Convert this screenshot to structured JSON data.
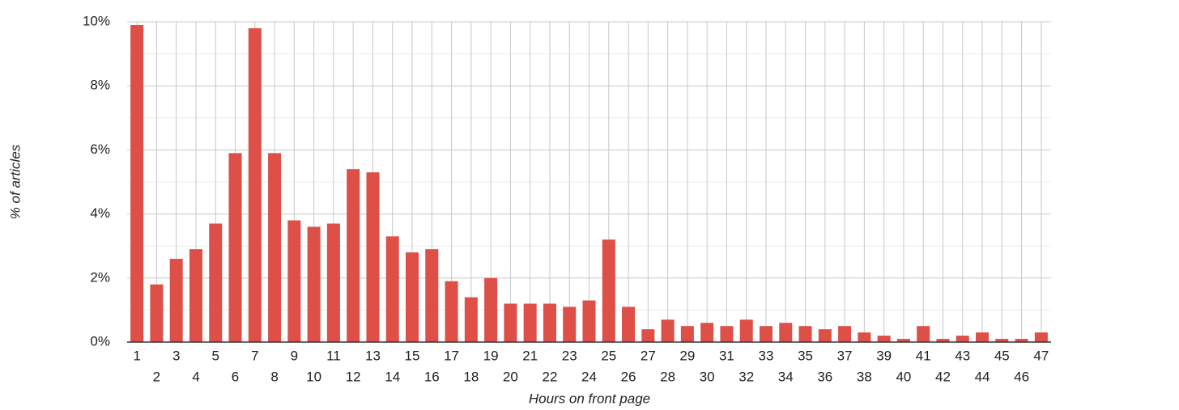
{
  "chart_data": {
    "type": "bar",
    "x_label": "Hours on front page",
    "y_label": "% of articles",
    "categories": [
      "1",
      "2",
      "3",
      "4",
      "5",
      "6",
      "7",
      "8",
      "9",
      "10",
      "11",
      "12",
      "13",
      "14",
      "15",
      "16",
      "17",
      "18",
      "19",
      "20",
      "21",
      "22",
      "23",
      "24",
      "25",
      "26",
      "27",
      "28",
      "29",
      "30",
      "31",
      "32",
      "33",
      "34",
      "35",
      "36",
      "37",
      "38",
      "39",
      "40",
      "41",
      "42",
      "43",
      "44",
      "45",
      "46",
      "47"
    ],
    "values": [
      9.9,
      1.8,
      2.6,
      2.9,
      3.7,
      5.9,
      9.8,
      5.9,
      3.8,
      3.6,
      3.7,
      5.4,
      5.3,
      3.3,
      2.8,
      2.9,
      1.9,
      1.4,
      2.0,
      1.2,
      1.2,
      1.2,
      1.1,
      1.3,
      3.2,
      1.1,
      0.4,
      0.7,
      0.5,
      0.6,
      0.5,
      0.7,
      0.5,
      0.6,
      0.5,
      0.4,
      0.5,
      0.3,
      0.2,
      0.1,
      0.5,
      0.1,
      0.2,
      0.3,
      0.1,
      0.1,
      0.3
    ],
    "color": "#dd4f47",
    "ylim": [
      0,
      10
    ],
    "yticks": [
      {
        "value": 0,
        "label": "0%"
      },
      {
        "value": 2,
        "label": "2%"
      },
      {
        "value": 4,
        "label": "4%"
      },
      {
        "value": 6,
        "label": "6%"
      },
      {
        "value": 8,
        "label": "8%"
      },
      {
        "value": 10,
        "label": "10%"
      }
    ],
    "yminorticks": [
      1,
      3,
      5,
      7,
      9
    ],
    "grid": true
  }
}
